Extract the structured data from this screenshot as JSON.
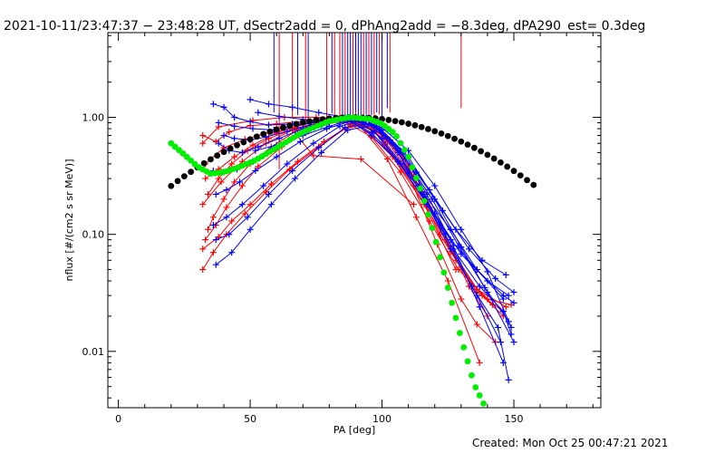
{
  "header": {
    "title": "2021-10-11/23:47:37 − 23:48:28 UT, dSectr2add = 0, dPhAng2add = −8.3deg, dPA290_est=  0.3deg"
  },
  "footer": {
    "created": "Created: Mon Oct 25 00:47:21 2021"
  },
  "colors": {
    "red": "#ff0000",
    "blue": "#0000ff",
    "black_fit": "#000000",
    "green_fit": "#00ee00"
  },
  "chart_data": {
    "type": "line",
    "xlabel": "PA [deg]",
    "ylabel": "nflux [#/(cm2 s sr MeV)]",
    "xlim": [
      -4,
      183
    ],
    "ylim": [
      0.0033,
      5.3
    ],
    "yscale": "log",
    "grid": false,
    "xticks": [
      0,
      50,
      100,
      150
    ],
    "xtick_labels": [
      "0",
      "50",
      "100",
      "150"
    ],
    "yticks": [
      0.01,
      0.1,
      1.0
    ],
    "ytick_labels": [
      "0.01",
      "0.10",
      "1.00"
    ],
    "series": [
      {
        "color": "red",
        "marker": "+",
        "x": [
          32,
          38,
          51,
          63,
          75,
          87,
          97,
          110,
          121,
          130,
          136,
          143
        ],
        "y": [
          0.6,
          0.83,
          0.94,
          1.0,
          1.0,
          0.97,
          0.78,
          0.33,
          0.082,
          0.028,
          0.017,
          0.012
        ]
      },
      {
        "color": "red",
        "marker": "+",
        "x": [
          33,
          38,
          44,
          51,
          60,
          71,
          83,
          92,
          102,
          112,
          122,
          133,
          140
        ],
        "y": [
          0.3,
          0.36,
          0.46,
          0.58,
          0.74,
          0.88,
          0.96,
          0.9,
          0.66,
          0.34,
          0.12,
          0.036,
          0.02
        ]
      },
      {
        "color": "red",
        "marker": "+",
        "x": [
          33,
          37,
          41,
          47,
          53,
          62,
          72,
          83,
          92,
          102,
          112,
          122,
          133,
          142
        ],
        "y": [
          0.09,
          0.12,
          0.17,
          0.26,
          0.38,
          0.56,
          0.76,
          0.93,
          0.91,
          0.62,
          0.3,
          0.1,
          0.04,
          0.025
        ]
      },
      {
        "color": "red",
        "marker": "+",
        "x": [
          32,
          36,
          41,
          48,
          56,
          65,
          76,
          86,
          95,
          105,
          116,
          126,
          136,
          146
        ],
        "y": [
          0.05,
          0.07,
          0.1,
          0.15,
          0.23,
          0.36,
          0.56,
          0.8,
          0.88,
          0.54,
          0.22,
          0.071,
          0.032,
          0.022
        ]
      },
      {
        "color": "red",
        "marker": "+",
        "x": [
          32,
          38,
          43,
          50,
          58,
          68,
          78,
          88,
          98,
          108,
          118,
          128,
          138,
          146
        ],
        "y": [
          0.075,
          0.095,
          0.13,
          0.18,
          0.27,
          0.42,
          0.62,
          0.86,
          0.8,
          0.46,
          0.17,
          0.06,
          0.03,
          0.02
        ]
      },
      {
        "color": "red",
        "marker": "+",
        "x": [
          33,
          40,
          48,
          57,
          68,
          80,
          91,
          102,
          113,
          125,
          137
        ],
        "y": [
          0.4,
          0.55,
          0.65,
          0.74,
          0.82,
          0.92,
          0.88,
          0.44,
          0.14,
          0.04,
          0.008
        ]
      },
      {
        "color": "red",
        "marker": "+",
        "x": [
          32,
          39,
          47,
          56,
          66,
          74,
          92,
          112
        ],
        "y": [
          0.18,
          0.28,
          0.42,
          0.6,
          0.78,
          0.47,
          0.44,
          0.18
        ]
      },
      {
        "color": "red",
        "marker": "+",
        "x": [
          34,
          36,
          40,
          44,
          50,
          58,
          68,
          80,
          92,
          104,
          116,
          128
        ],
        "y": [
          0.11,
          0.14,
          0.2,
          0.28,
          0.4,
          0.56,
          0.78,
          0.95,
          0.85,
          0.46,
          0.18,
          0.05
        ]
      },
      {
        "color": "red",
        "marker": "+",
        "x": [
          32,
          37,
          42,
          50,
          60,
          72,
          84,
          96,
          107,
          118,
          129,
          140,
          149
        ],
        "y": [
          0.7,
          0.62,
          0.75,
          0.85,
          0.88,
          0.94,
          0.98,
          0.68,
          0.34,
          0.13,
          0.05,
          0.028,
          0.025
        ]
      },
      {
        "color": "red",
        "marker": "+",
        "x": [
          34,
          38,
          43,
          49,
          57,
          67,
          79,
          90,
          101,
          112,
          124,
          136,
          147
        ],
        "y": [
          0.22,
          0.3,
          0.4,
          0.52,
          0.66,
          0.8,
          0.94,
          0.92,
          0.58,
          0.26,
          0.09,
          0.034,
          0.024
        ]
      },
      {
        "color": "blue",
        "marker": "+",
        "x": [
          36,
          40,
          44,
          50,
          57,
          66,
          76,
          86,
          96,
          106,
          116,
          126,
          136,
          146,
          150
        ],
        "y": [
          1.3,
          1.22,
          1.0,
          0.92,
          0.86,
          0.88,
          0.93,
          0.96,
          0.74,
          0.42,
          0.2,
          0.09,
          0.05,
          0.03,
          0.026
        ]
      },
      {
        "color": "blue",
        "marker": "+",
        "x": [
          38,
          44,
          51,
          59,
          68,
          78,
          88,
          98,
          108,
          118,
          128,
          138,
          147
        ],
        "y": [
          0.9,
          0.84,
          0.8,
          0.78,
          0.86,
          0.93,
          0.97,
          0.84,
          0.5,
          0.24,
          0.11,
          0.06,
          0.045
        ]
      },
      {
        "color": "blue",
        "marker": "+",
        "x": [
          38,
          42,
          47,
          53,
          61,
          70,
          80,
          90,
          100,
          110,
          120,
          130,
          140,
          148
        ],
        "y": [
          0.6,
          0.52,
          0.5,
          0.56,
          0.66,
          0.8,
          0.92,
          0.96,
          0.66,
          0.34,
          0.15,
          0.068,
          0.04,
          0.03
        ]
      },
      {
        "color": "blue",
        "marker": "+",
        "x": [
          36,
          40,
          45,
          51,
          58,
          67,
          77,
          87,
          97,
          107,
          117,
          127,
          137,
          146,
          149
        ],
        "y": [
          0.35,
          0.34,
          0.36,
          0.42,
          0.54,
          0.7,
          0.86,
          0.95,
          0.76,
          0.4,
          0.18,
          0.075,
          0.036,
          0.022,
          0.014
        ]
      },
      {
        "color": "blue",
        "marker": "+",
        "x": [
          37,
          41,
          46,
          52,
          60,
          69,
          79,
          89,
          99,
          109,
          119,
          129,
          139,
          148
        ],
        "y": [
          0.22,
          0.24,
          0.28,
          0.35,
          0.46,
          0.62,
          0.8,
          0.94,
          0.8,
          0.44,
          0.2,
          0.08,
          0.035,
          0.018
        ]
      },
      {
        "color": "blue",
        "marker": "+",
        "x": [
          36,
          41,
          47,
          55,
          64,
          74,
          84,
          94,
          104,
          114,
          124,
          134,
          144,
          148
        ],
        "y": [
          0.12,
          0.14,
          0.18,
          0.26,
          0.4,
          0.6,
          0.84,
          0.96,
          0.6,
          0.26,
          0.1,
          0.036,
          0.016,
          0.0057
        ]
      },
      {
        "color": "blue",
        "marker": "+",
        "x": [
          37,
          42,
          49,
          57,
          66,
          76,
          86,
          96,
          106,
          116,
          126,
          136,
          145
        ],
        "y": [
          0.09,
          0.1,
          0.14,
          0.22,
          0.35,
          0.55,
          0.82,
          0.9,
          0.5,
          0.2,
          0.075,
          0.03,
          0.012
        ]
      },
      {
        "color": "blue",
        "marker": "+",
        "x": [
          37,
          43,
          50,
          58,
          67,
          77,
          87,
          97,
          107,
          117,
          127,
          137,
          146
        ],
        "y": [
          0.055,
          0.07,
          0.11,
          0.18,
          0.3,
          0.5,
          0.78,
          0.86,
          0.52,
          0.22,
          0.08,
          0.024,
          0.008
        ]
      },
      {
        "color": "blue",
        "marker": "+",
        "x": [
          50,
          57,
          66,
          76,
          86,
          96,
          106,
          116,
          126,
          136,
          146
        ],
        "y": [
          1.42,
          1.3,
          1.22,
          1.1,
          1.0,
          0.7,
          0.42,
          0.22,
          0.11,
          0.05,
          0.028
        ]
      },
      {
        "color": "blue",
        "marker": "+",
        "x": [
          53,
          61,
          70,
          80,
          90,
          100,
          110,
          120,
          130,
          140,
          149
        ],
        "y": [
          1.1,
          1.02,
          0.96,
          0.9,
          0.94,
          0.82,
          0.52,
          0.26,
          0.11,
          0.048,
          0.016
        ]
      },
      {
        "color": "blue",
        "marker": "+",
        "x": [
          52,
          60,
          70,
          80,
          90,
          100,
          110,
          120,
          130,
          140,
          150
        ],
        "y": [
          0.52,
          0.58,
          0.7,
          0.84,
          0.98,
          0.78,
          0.46,
          0.2,
          0.078,
          0.032,
          0.012
        ]
      },
      {
        "color": "blue",
        "marker": "+",
        "x": [
          40,
          44,
          50,
          56,
          64,
          73,
          83,
          93,
          103,
          113,
          123,
          133,
          143,
          150
        ],
        "y": [
          0.7,
          0.66,
          0.64,
          0.68,
          0.76,
          0.86,
          0.95,
          0.92,
          0.64,
          0.34,
          0.16,
          0.075,
          0.042,
          0.032
        ]
      }
    ],
    "vertical_lines": [
      {
        "color": "red",
        "x": [
          61,
          66,
          71,
          79,
          82,
          84,
          86,
          89,
          90,
          93,
          95,
          97,
          99,
          103,
          130
        ],
        "y_from": [
          0.36,
          1.0,
          0.95,
          1.0,
          1.02,
          0.9,
          0.97,
          1.03,
          1.05,
          1.0,
          0.96,
          1.02,
          1.06,
          1.1,
          1.2
        ]
      },
      {
        "color": "blue",
        "x": [
          59,
          68,
          72,
          81,
          85,
          87,
          88,
          90,
          91,
          92,
          94,
          96,
          98,
          100,
          102
        ],
        "y_from": [
          1.1,
          1.05,
          0.98,
          1.08,
          1.02,
          1.04,
          0.96,
          1.12,
          1.0,
          1.06,
          0.98,
          1.04,
          1.1,
          1.02,
          1.2
        ]
      }
    ],
    "fits": [
      {
        "color": "black_fit",
        "kind": "dots",
        "x_range": [
          20,
          159
        ],
        "step": 2.5,
        "model": "gaussian",
        "peak_x": 89,
        "peak_y": 1.0,
        "sigma": 42
      },
      {
        "color": "green_fit",
        "kind": "dots",
        "x_range": [
          20,
          139
        ],
        "step": 1.5,
        "model": "piecewise",
        "x": [
          20,
          25,
          30,
          35,
          40,
          45,
          52,
          60,
          70,
          80,
          88,
          95,
          100,
          105,
          110,
          115,
          120,
          125,
          130,
          135,
          139
        ],
        "y": [
          0.6,
          0.48,
          0.38,
          0.33,
          0.34,
          0.37,
          0.43,
          0.55,
          0.75,
          0.93,
          1.0,
          0.97,
          0.88,
          0.72,
          0.46,
          0.23,
          0.095,
          0.035,
          0.013,
          0.0052,
          0.0034
        ]
      }
    ]
  }
}
